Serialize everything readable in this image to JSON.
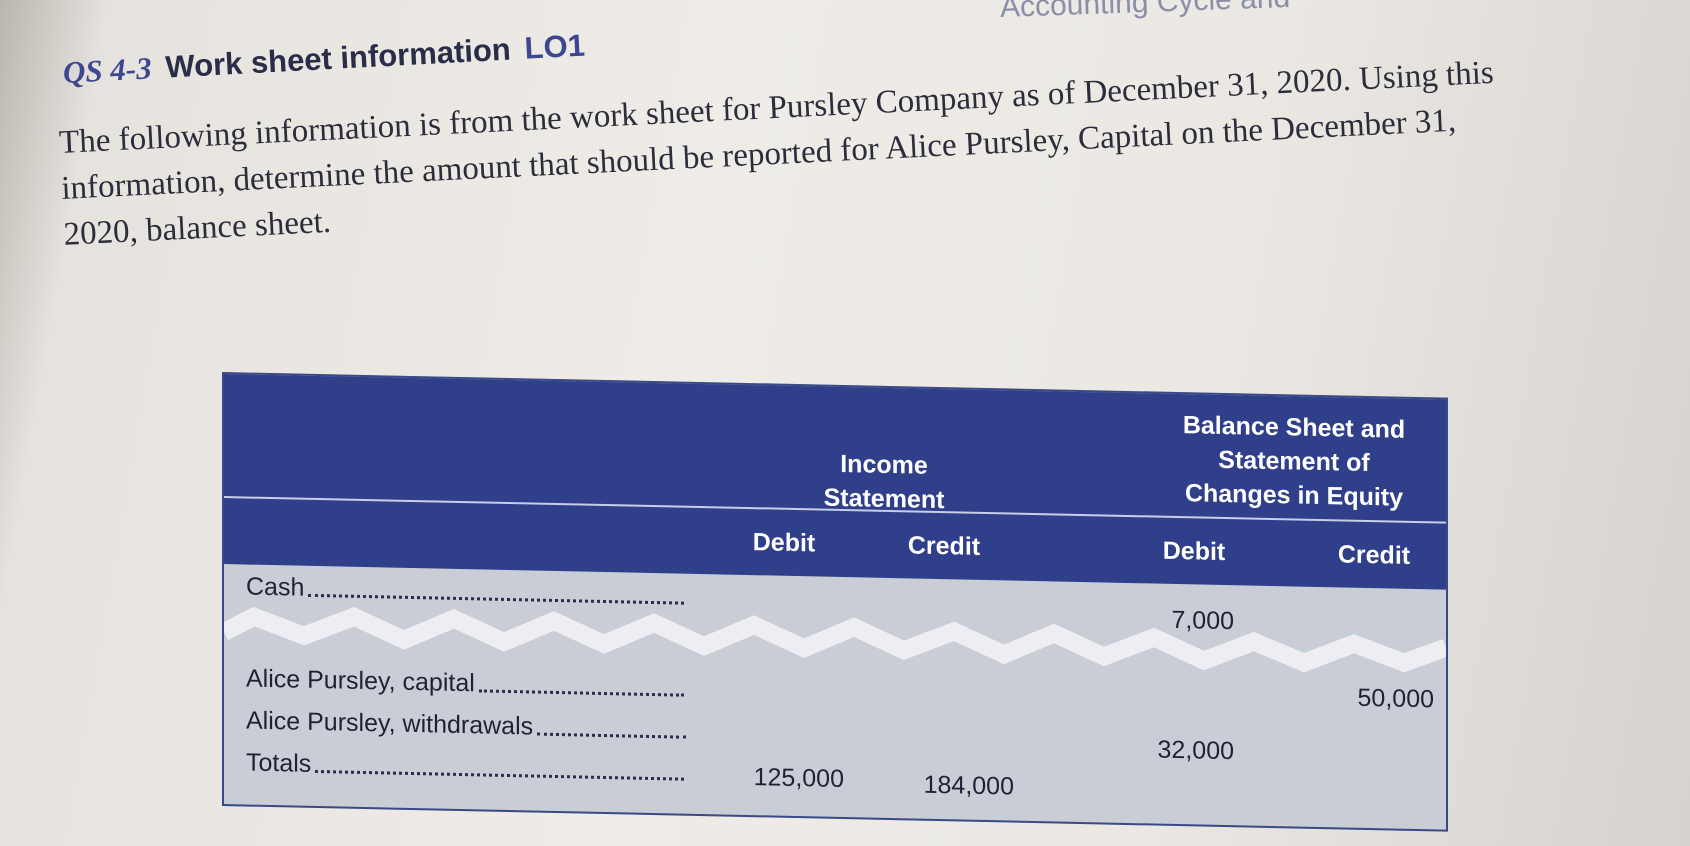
{
  "running_head": "Accounting Cycle and",
  "heading": {
    "number": "QS 4-3",
    "title": "Work sheet information",
    "objective": "LO1"
  },
  "body_lines": [
    "The following information is from the work sheet for Pursley Company as of December 31, 2020. Using this",
    "information, determine the amount that should be reported for Alice Pursley, Capital on the December 31,",
    "2020, balance sheet."
  ],
  "worksheet": {
    "group_income": [
      "Income",
      "Statement"
    ],
    "group_balance": [
      "Balance Sheet and",
      "Statement of",
      "Changes in Equity"
    ],
    "columns": [
      "Debit",
      "Credit",
      "Debit",
      "Credit"
    ],
    "rows": [
      {
        "label": "Cash",
        "is_debit": "",
        "is_credit": "",
        "bs_debit": "7,000",
        "bs_credit": ""
      },
      {
        "label": "Alice Pursley, capital",
        "is_debit": "",
        "is_credit": "",
        "bs_debit": "",
        "bs_credit": "50,000"
      },
      {
        "label": "Alice Pursley, withdrawals",
        "is_debit": "",
        "is_credit": "",
        "bs_debit": "32,000",
        "bs_credit": ""
      },
      {
        "label": "Totals",
        "is_debit": "125,000",
        "is_credit": "184,000",
        "bs_debit": "",
        "bs_credit": ""
      }
    ]
  },
  "colors": {
    "header_blue": "#2f3f8a",
    "table_body": "#c9cdd6",
    "accent_blue": "#3d4690",
    "text_dark": "#2c2c3a"
  }
}
